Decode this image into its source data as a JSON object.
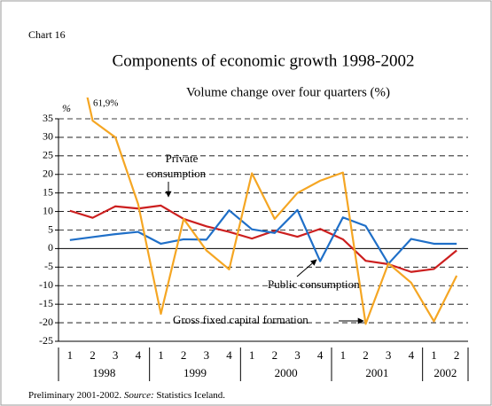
{
  "chart_data": {
    "type": "line",
    "label": "Chart 16",
    "title": "Components of economic growth 1998-2002",
    "subtitle": "Volume change over four quarters (%)",
    "y_unit": "%",
    "peak_label": "61,9%",
    "categories": [
      "1",
      "2",
      "3",
      "4",
      "1",
      "2",
      "3",
      "4",
      "1",
      "2",
      "3",
      "4",
      "1",
      "2",
      "3",
      "4",
      "1",
      "2"
    ],
    "years": [
      "1998",
      "1999",
      "2000",
      "2001",
      "2002"
    ],
    "year_spans": [
      4,
      4,
      4,
      4,
      2
    ],
    "series": [
      {
        "name": "Private consumption",
        "color": "#cc1f1f",
        "values": [
          10.2,
          8.3,
          11.4,
          10.8,
          11.6,
          8.0,
          6.0,
          4.5,
          2.7,
          4.8,
          3.2,
          5.3,
          2.5,
          -3.3,
          -4.2,
          -6.3,
          -5.5,
          -0.5
        ]
      },
      {
        "name": "Public consumption",
        "color": "#1f6fc8",
        "values": [
          2.3,
          3.1,
          3.9,
          4.5,
          1.3,
          2.5,
          2.4,
          10.3,
          5.2,
          4.2,
          10.4,
          -3.4,
          8.4,
          6.1,
          -4.1,
          2.6,
          1.3,
          1.3
        ]
      },
      {
        "name": "Gross fixed capital formation",
        "color": "#f5a623",
        "values": [
          61.9,
          34.5,
          30.0,
          12.0,
          -17.6,
          8.0,
          -0.5,
          -5.6,
          20.3,
          8.0,
          15.0,
          18.3,
          20.5,
          -20.3,
          -4.0,
          -9.2,
          -19.6,
          -7.3
        ]
      }
    ],
    "ylim": [
      -25,
      35
    ],
    "yticks": [
      -25,
      -20,
      -15,
      -10,
      -5,
      0,
      5,
      10,
      15,
      20,
      25,
      30,
      35
    ],
    "grid": true,
    "note": "Preliminary 2001-2002.",
    "source_label": "Source:",
    "source": "Statistics Iceland."
  }
}
